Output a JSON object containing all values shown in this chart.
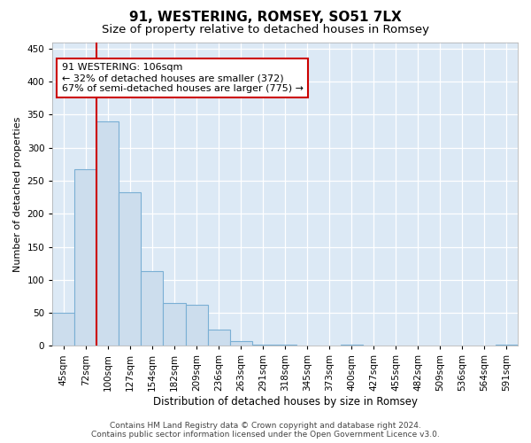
{
  "title": "91, WESTERING, ROMSEY, SO51 7LX",
  "subtitle": "Size of property relative to detached houses in Romsey",
  "xlabel": "Distribution of detached houses by size in Romsey",
  "ylabel": "Number of detached properties",
  "categories": [
    "45sqm",
    "72sqm",
    "100sqm",
    "127sqm",
    "154sqm",
    "182sqm",
    "209sqm",
    "236sqm",
    "263sqm",
    "291sqm",
    "318sqm",
    "345sqm",
    "373sqm",
    "400sqm",
    "427sqm",
    "455sqm",
    "482sqm",
    "509sqm",
    "536sqm",
    "564sqm",
    "591sqm"
  ],
  "values": [
    50,
    267,
    340,
    232,
    113,
    65,
    62,
    25,
    7,
    2,
    2,
    0,
    0,
    2,
    0,
    0,
    0,
    0,
    0,
    0,
    2
  ],
  "bar_color": "#ccdded",
  "bar_edge_color": "#7aafd4",
  "vline_x": 1.5,
  "vline_color": "#cc0000",
  "ylim": [
    0,
    460
  ],
  "yticks": [
    0,
    50,
    100,
    150,
    200,
    250,
    300,
    350,
    400,
    450
  ],
  "annotation_text": "91 WESTERING: 106sqm\n← 32% of detached houses are smaller (372)\n67% of semi-detached houses are larger (775) →",
  "annotation_box_color": "#ffffff",
  "annotation_box_edge": "#cc0000",
  "footer_text": "Contains HM Land Registry data © Crown copyright and database right 2024.\nContains public sector information licensed under the Open Government Licence v3.0.",
  "fig_bg_color": "#ffffff",
  "plot_bg_color": "#dce9f5",
  "title_fontsize": 11,
  "subtitle_fontsize": 9.5,
  "xlabel_fontsize": 8.5,
  "ylabel_fontsize": 8,
  "tick_fontsize": 7.5,
  "annotation_fontsize": 8,
  "footer_fontsize": 6.5
}
